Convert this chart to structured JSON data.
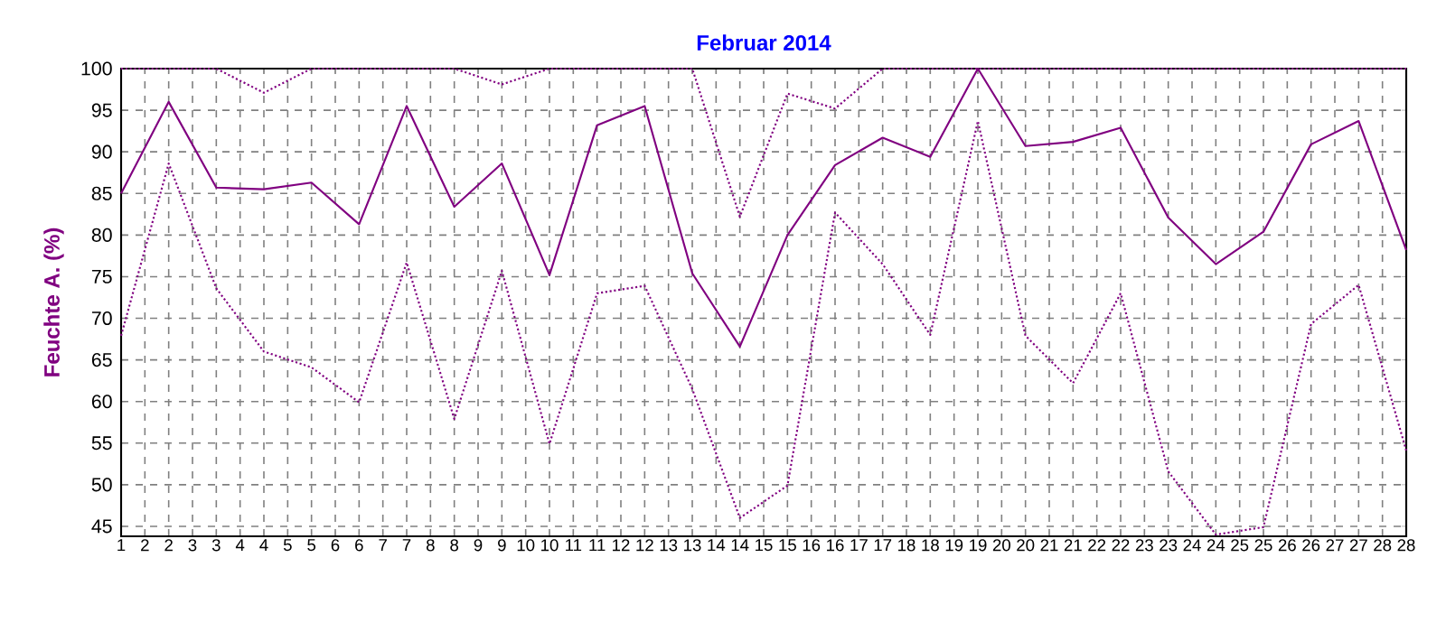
{
  "chart_data": {
    "type": "line",
    "title": "Februar 2014",
    "ylabel": "Feuchte A. (%)",
    "x": [
      1,
      2,
      3,
      4,
      5,
      6,
      7,
      8,
      9,
      10,
      11,
      12,
      13,
      14,
      15,
      16,
      17,
      18,
      19,
      20,
      21,
      22,
      23,
      24,
      25,
      26,
      27,
      28
    ],
    "series": [
      {
        "color": "#800080",
        "line_style": "dotted",
        "values": [
          100,
          100,
          100,
          97.1,
          100,
          100,
          100,
          100,
          98.1,
          100,
          100,
          100,
          100,
          82.2,
          97.0,
          95.2,
          100,
          100,
          100,
          100,
          100,
          100,
          100,
          100,
          100,
          100,
          100,
          100
        ]
      },
      {
        "color": "#800080",
        "line_style": "solid",
        "values": [
          85.0,
          96.0,
          85.7,
          85.5,
          86.3,
          81.3,
          95.5,
          83.4,
          88.6,
          75.2,
          93.2,
          95.5,
          75.4,
          66.6,
          80.0,
          88.4,
          91.7,
          89.4,
          100,
          90.7,
          91.2,
          92.9,
          82.1,
          76.5,
          80.4,
          90.9,
          93.7,
          78.2
        ]
      },
      {
        "color": "#800080",
        "line_style": "dotted",
        "values": [
          67.9,
          88.6,
          73.6,
          66.0,
          64.1,
          59.9,
          76.7,
          57.9,
          75.7,
          54.9,
          73.0,
          73.9,
          61.5,
          46.0,
          49.9,
          82.7,
          76.5,
          68.0,
          93.7,
          67.9,
          62.2,
          73.0,
          51.6,
          44.0,
          44.9,
          69.3,
          74.0,
          54.1
        ]
      }
    ],
    "xlim": [
      1,
      28
    ],
    "ylim": [
      43.8,
      100
    ],
    "xticks": [
      {
        "value": 1,
        "label": "1"
      },
      {
        "value": 1.5,
        "label": "2"
      },
      {
        "value": 2,
        "label": "2"
      },
      {
        "value": 2.5,
        "label": "3"
      },
      {
        "value": 3,
        "label": "3"
      },
      {
        "value": 3.5,
        "label": "4"
      },
      {
        "value": 4,
        "label": "4"
      },
      {
        "value": 4.5,
        "label": "5"
      },
      {
        "value": 5,
        "label": "5"
      },
      {
        "value": 5.5,
        "label": "6"
      },
      {
        "value": 6,
        "label": "6"
      },
      {
        "value": 6.5,
        "label": "7"
      },
      {
        "value": 7,
        "label": "7"
      },
      {
        "value": 7.5,
        "label": "8"
      },
      {
        "value": 8,
        "label": "8"
      },
      {
        "value": 8.5,
        "label": "9"
      },
      {
        "value": 9,
        "label": "9"
      },
      {
        "value": 9.5,
        "label": "10"
      },
      {
        "value": 10,
        "label": "10"
      },
      {
        "value": 10.5,
        "label": "11"
      },
      {
        "value": 11,
        "label": "11"
      },
      {
        "value": 11.5,
        "label": "12"
      },
      {
        "value": 12,
        "label": "12"
      },
      {
        "value": 12.5,
        "label": "13"
      },
      {
        "value": 13,
        "label": "13"
      },
      {
        "value": 13.5,
        "label": "14"
      },
      {
        "value": 14,
        "label": "14"
      },
      {
        "value": 14.5,
        "label": "15"
      },
      {
        "value": 15,
        "label": "15"
      },
      {
        "value": 15.5,
        "label": "16"
      },
      {
        "value": 16,
        "label": "16"
      },
      {
        "value": 16.5,
        "label": "17"
      },
      {
        "value": 17,
        "label": "17"
      },
      {
        "value": 17.5,
        "label": "18"
      },
      {
        "value": 18,
        "label": "18"
      },
      {
        "value": 18.5,
        "label": "19"
      },
      {
        "value": 19,
        "label": "19"
      },
      {
        "value": 19.5,
        "label": "20"
      },
      {
        "value": 20,
        "label": "20"
      },
      {
        "value": 20.5,
        "label": "21"
      },
      {
        "value": 21,
        "label": "21"
      },
      {
        "value": 21.5,
        "label": "22"
      },
      {
        "value": 22,
        "label": "22"
      },
      {
        "value": 22.5,
        "label": "23"
      },
      {
        "value": 23,
        "label": "23"
      },
      {
        "value": 23.5,
        "label": "24"
      },
      {
        "value": 24,
        "label": "24"
      },
      {
        "value": 24.5,
        "label": "25"
      },
      {
        "value": 25,
        "label": "25"
      },
      {
        "value": 25.5,
        "label": "26"
      },
      {
        "value": 26,
        "label": "26"
      },
      {
        "value": 26.5,
        "label": "27"
      },
      {
        "value": 27,
        "label": "27"
      },
      {
        "value": 27.5,
        "label": "28"
      },
      {
        "value": 28,
        "label": "28"
      }
    ],
    "yticks": [
      45,
      50,
      55,
      60,
      65,
      70,
      75,
      80,
      85,
      90,
      95,
      100
    ],
    "grid": true
  }
}
